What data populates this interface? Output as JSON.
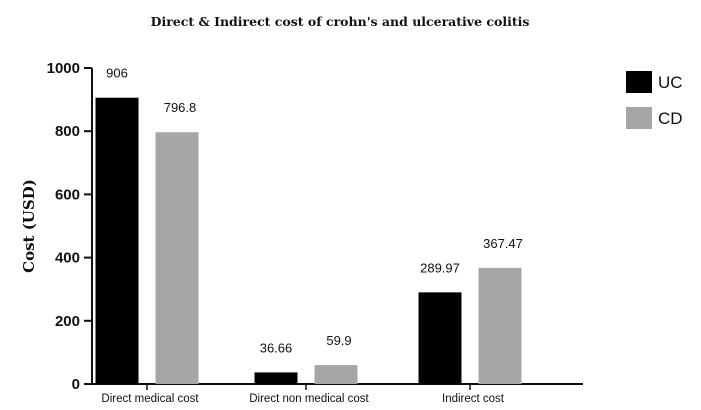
{
  "chart_data": {
    "type": "bar",
    "title": "Direct & Indirect cost of crohn's and ulcerative colitis",
    "xlabel": "",
    "ylabel": "Cost (USD)",
    "ylim": [
      0,
      1000
    ],
    "yticks": [
      0,
      200,
      400,
      600,
      800,
      1000
    ],
    "categories": [
      "Direct medical cost",
      "Direct non medical cost",
      "Indirect cost"
    ],
    "series": [
      {
        "name": "UC",
        "color": "#000000",
        "values": [
          906,
          36.66,
          289.97
        ],
        "labels": [
          "906",
          "36.66",
          "289.97"
        ]
      },
      {
        "name": "CD",
        "color": "#a6a6a6",
        "values": [
          796.8,
          59.9,
          367.47
        ],
        "labels": [
          "796.8",
          "59.9",
          "367.47"
        ]
      }
    ],
    "grid": false,
    "legend": "top-right"
  }
}
